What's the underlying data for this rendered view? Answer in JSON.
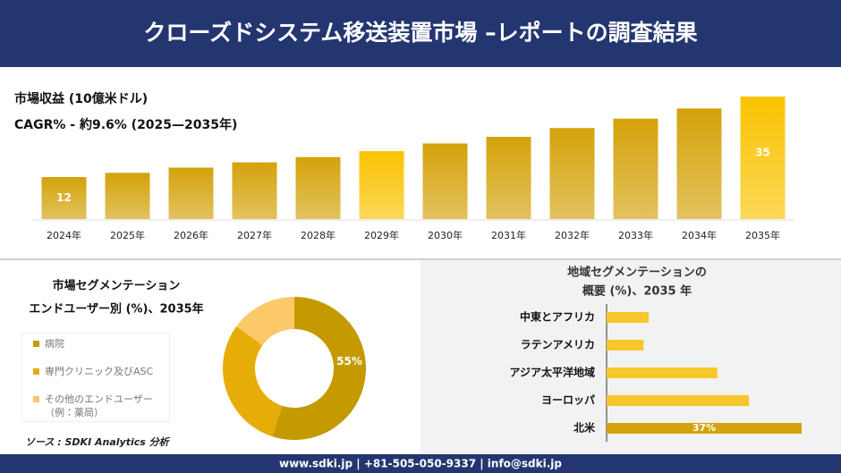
{
  "header": {
    "title": "クローズドシステム移送装置市場 –レポートの調査結果"
  },
  "chart_data": [
    {
      "type": "bar",
      "title": "市場収益 (10億米ドル)",
      "subtitle": "CAGR% - 約9.6% (2025—2035年)",
      "categories": [
        "2024年",
        "2025年",
        "2026年",
        "2027年",
        "2028年",
        "2029年",
        "2030年",
        "2031年",
        "2032年",
        "2033年",
        "2034年",
        "2035年"
      ],
      "values": [
        12,
        13.2,
        14.7,
        16.2,
        17.7,
        19.4,
        21.6,
        23.5,
        26,
        28.7,
        31.6,
        35
      ],
      "value_labels": [
        "12",
        null,
        null,
        null,
        null,
        null,
        null,
        null,
        null,
        null,
        null,
        "35"
      ],
      "colors": [
        "#d4a20a",
        "#d4a20a",
        "#d4a20a",
        "#d4a20a",
        "#d4a20a",
        "#f9c300",
        "#d4a20a",
        "#d4a20a",
        "#d4a20a",
        "#d4a20a",
        "#d4a20a",
        "#f9c300"
      ]
    },
    {
      "type": "donut",
      "title": [
        "市場セグメンテーション",
        "エンドユーザー別 (%)、2035年"
      ],
      "categories": [
        "病院",
        "専門クリニック及びASC",
        "その他のエンドユーザー（例：薬局）"
      ],
      "values": [
        55,
        30,
        15
      ],
      "value_labels": [
        "55%",
        null,
        null
      ],
      "colors": [
        "#c49a00",
        "#e6ad08",
        "#fcc868"
      ]
    },
    {
      "type": "hbar",
      "title": [
        "地域セグメンテーションの",
        "概要 (%)、2035 年"
      ],
      "categories": [
        "中東とアフリカ",
        "ラテンアメリカ",
        "アジア太平洋地域",
        "ヨーロッパ",
        "北米"
      ],
      "values": [
        8,
        7,
        21,
        27,
        37
      ],
      "value_labels": [
        null,
        null,
        null,
        null,
        "37%"
      ],
      "colors": [
        "#f7c62a",
        "#f7c62a",
        "#f7c62a",
        "#f7c62a",
        "#d4a20a"
      ]
    }
  ],
  "source": "ソース : SDKI Analytics 分析",
  "footer": "www.sdki.jp | +81-505-050-9337 | info@sdki.jp"
}
